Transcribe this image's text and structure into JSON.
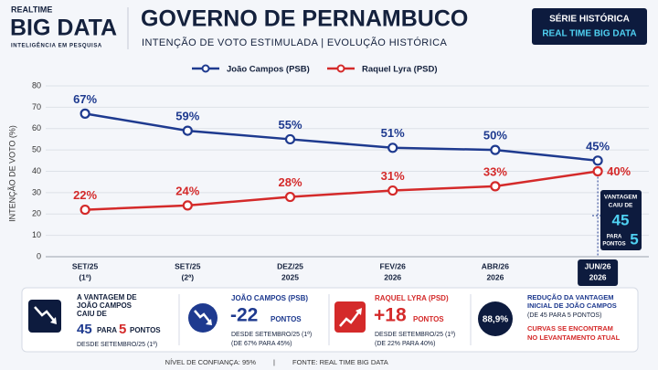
{
  "header": {
    "logo_top": "REALTIME",
    "logo_main": "BIG DATA",
    "logo_tagline": "INTELIGÊNCIA EM PESQUISA",
    "badge_top": "SÉRIE HISTÓRICA",
    "badge_bottom": "REAL TIME BIG DATA"
  },
  "chart_data": {
    "type": "line",
    "title": "GOVERNO DE PERNAMBUCO",
    "subtitle": "INTENÇÃO DE VOTO ESTIMULADA  |  EVOLUÇÃO HISTÓRICA",
    "y_label": "INTENÇÃO DE VOTO (%)",
    "categories": [
      [
        "SET/25",
        "(1ª)"
      ],
      [
        "SET/25",
        "(2ª)"
      ],
      [
        "DEZ/25",
        "2025"
      ],
      [
        "FEV/26",
        "2026"
      ],
      [
        "ABR/26",
        "2026"
      ],
      [
        "JUN/26",
        "2026"
      ]
    ],
    "series": [
      {
        "name": "João Campos (PSB)",
        "color": "#1e3a8f",
        "values": [
          67,
          59,
          55,
          51,
          50,
          45
        ],
        "value_labels": [
          "67%",
          "59%",
          "55%",
          "51%",
          "50%",
          "45%"
        ]
      },
      {
        "name": "Raquel Lyra (PSD)",
        "color": "#d42a2a",
        "values": [
          22,
          24,
          28,
          31,
          33,
          40
        ],
        "value_labels": [
          "22%",
          "24%",
          "28%",
          "31%",
          "33%",
          "40%"
        ]
      }
    ],
    "ylim": [
      0,
      80
    ],
    "yticks": [
      0,
      10,
      20,
      30,
      40,
      50,
      60,
      70,
      80
    ],
    "grid": true,
    "annotation": {
      "line1": "VANTAGEM",
      "line2": "CAIU DE",
      "from": "45",
      "para": "PARA",
      "pontos": "PONTOS",
      "to": "5"
    }
  },
  "cards": [
    {
      "l1": "A VANTAGEM DE",
      "l2": "JOÃO CAMPOS",
      "l3": "CAIU DE",
      "from": "45",
      "para": "PARA",
      "to": "5",
      "unit": "PONTOS",
      "note": "DESDE SETEMBRO/25 (1ª)"
    },
    {
      "head": "JOÃO CAMPOS (PSB)",
      "big": "-22",
      "unit": "PONTOS",
      "note1": "DESDE SETEMBRO/25 (1ª)",
      "note2": "(DE 67% PARA 45%)"
    },
    {
      "head": "RAQUEL LYRA (PSD)",
      "big": "+18",
      "unit": "PONTOS",
      "note1": "DESDE SETEMBRO/25 (1ª)",
      "note2": "(DE 22% PARA 40%)"
    },
    {
      "badge": "88,9%",
      "l1": "REDUÇÃO DA VANTAGEM",
      "l2": "INICIAL DE JOÃO CAMPOS",
      "l3": "(DE 45 PARA 5 PONTOS)",
      "l4": "CURVAS SE ENCONTRAM",
      "l5": "NO LEVANTAMENTO ATUAL"
    }
  ],
  "footer": {
    "left": "NÍVEL DE CONFIANÇA: 95%",
    "sep": "|",
    "right": "FONTE: REAL TIME BIG DATA"
  }
}
